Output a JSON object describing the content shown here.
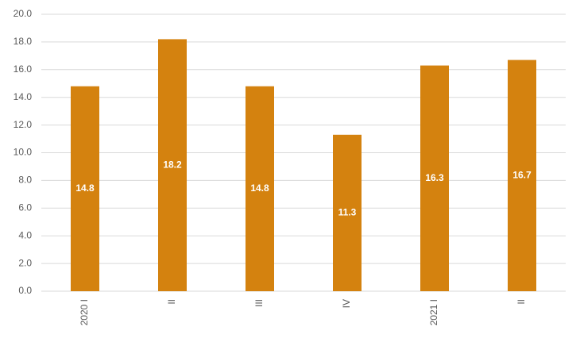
{
  "chart_data": {
    "type": "bar",
    "categories": [
      "2020 I",
      "II",
      "III",
      "IV",
      "2021 I",
      "II"
    ],
    "values": [
      14.8,
      18.2,
      14.8,
      11.3,
      16.3,
      16.7
    ],
    "color": "#d4820f",
    "ylim": [
      0,
      20
    ],
    "yticks": [
      {
        "value": 0,
        "label": "0.0"
      },
      {
        "value": 2,
        "label": "2.0"
      },
      {
        "value": 4,
        "label": "4.0"
      },
      {
        "value": 6,
        "label": "6.0"
      },
      {
        "value": 8,
        "label": "8.0"
      },
      {
        "value": 10,
        "label": "10.0"
      },
      {
        "value": 12,
        "label": "12.0"
      },
      {
        "value": 14,
        "label": "14.0"
      },
      {
        "value": 16,
        "label": "16.0"
      },
      {
        "value": 18,
        "label": "18.0"
      },
      {
        "value": 20,
        "label": "20.0"
      }
    ],
    "grid": true
  }
}
